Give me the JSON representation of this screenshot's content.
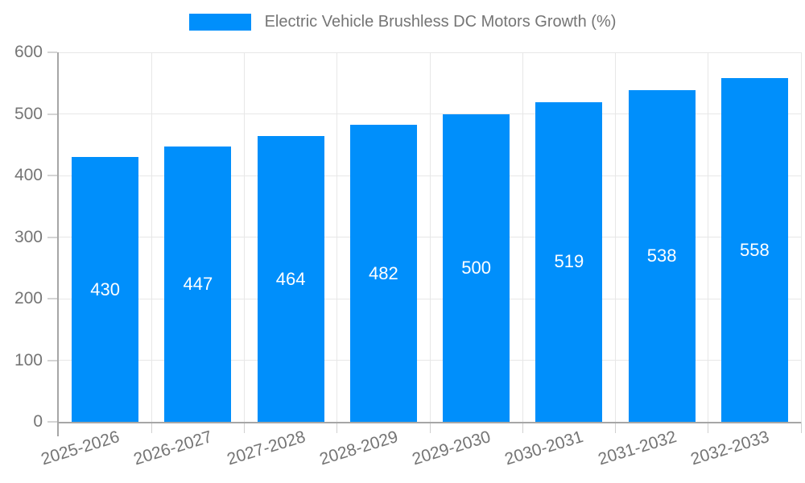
{
  "chart_data": {
    "type": "bar",
    "title": "Electric Vehicle Brushless DC Motors Growth (%)",
    "legend_position": "top",
    "categories": [
      "2025-2026",
      "2026-2027",
      "2027-2028",
      "2028-2029",
      "2029-2030",
      "2030-2031",
      "2031-2032",
      "2032-2033"
    ],
    "values": [
      430,
      447,
      464,
      482,
      500,
      519,
      538,
      558
    ],
    "value_labels": [
      "430",
      "447",
      "464",
      "482",
      "500",
      "519",
      "538",
      "558"
    ],
    "xlabel": "",
    "ylabel": "",
    "ylim": [
      0,
      600
    ],
    "yticks": [
      0,
      100,
      200,
      300,
      400,
      500,
      600
    ],
    "grid": true,
    "x_label_rotation_deg": -17,
    "colors": {
      "bar": "#008FFB",
      "value_label": "#ffffff",
      "axis_text": "#757575",
      "legend_text": "#757575",
      "gridline": "#e7e7e7",
      "axis_line": "#a6a6a6"
    }
  }
}
